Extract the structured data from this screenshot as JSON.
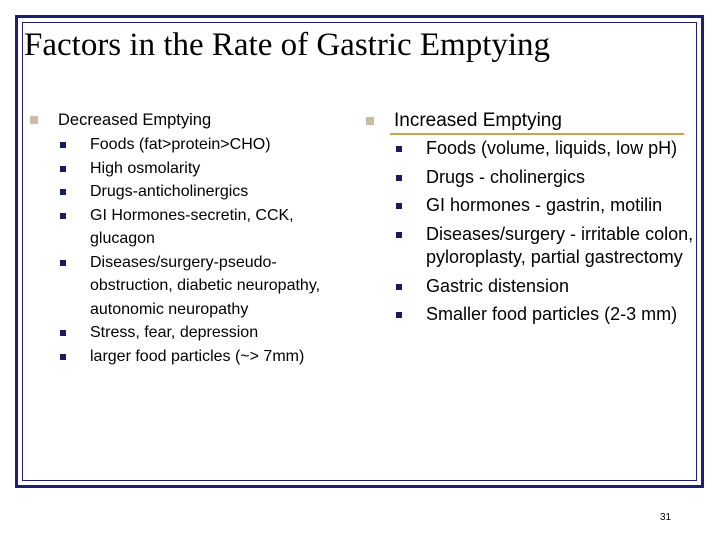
{
  "slide": {
    "title": "Factors in the Rate of Gastric Emptying",
    "page_number": "31"
  },
  "left": {
    "heading": "Decreased Emptying",
    "items": [
      "Foods (fat>protein>CHO)",
      "High osmolarity",
      "Drugs-anticholinergics",
      "GI Hormones-secretin, CCK, glucagon",
      "Diseases/surgery-pseudo-obstruction, diabetic neuropathy, autonomic neuropathy",
      "Stress, fear, depression",
      "larger food particles (~> 7mm)"
    ]
  },
  "right": {
    "heading": "Increased Emptying",
    "items": [
      "Foods (volume, liquids, low pH)",
      "Drugs - cholinergics",
      "GI hormones - gastrin, motilin",
      "Diseases/surgery - irritable colon, pyloroplasty, partial gastrectomy",
      "Gastric distension",
      "Smaller food particles (2-3 mm)"
    ]
  },
  "colors": {
    "frame": "#1f1f6e",
    "main_bullet": "#c8bda0",
    "sub_bullet": "#1a1a5c",
    "accent_rule": "#c8a450"
  }
}
